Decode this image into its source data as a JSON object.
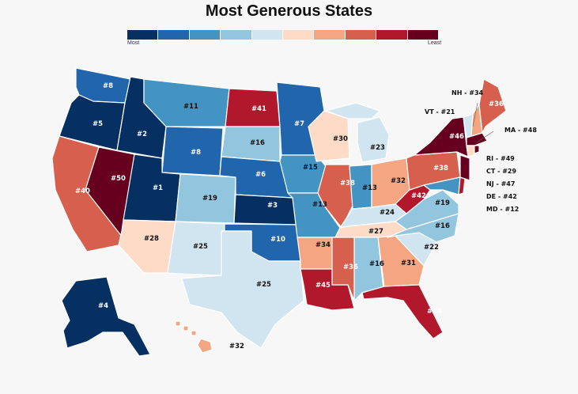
{
  "title": "Most Generous States",
  "legend": {
    "low_label": "Most",
    "high_label": "Least",
    "colors": [
      "#053061",
      "#2166ac",
      "#4393c3",
      "#92c5de",
      "#d1e5f0",
      "#fddbc7",
      "#f4a582",
      "#d6604d",
      "#b2182b",
      "#67001f"
    ]
  },
  "ranks": {
    "WA": 8,
    "OR": 5,
    "CA": 40,
    "NV": 50,
    "ID": 2,
    "MT": 11,
    "WY": 8,
    "UT": 1,
    "AZ": 28,
    "CO": 19,
    "NM": 25,
    "ND": 41,
    "SD": 16,
    "NE": 6,
    "KS": 3,
    "OK": 10,
    "TX": 25,
    "MN": 7,
    "IA": 15,
    "MO": 13,
    "AR": 34,
    "LA": 45,
    "WI": 30,
    "IL": 38,
    "MI": 23,
    "IN": 13,
    "OH": 32,
    "KY": 24,
    "TN": 27,
    "MS": 36,
    "AL": 16,
    "GA": 31,
    "FL": 44,
    "SC": 22,
    "NC": 16,
    "VA": 19,
    "WV": 42,
    "PA": 38,
    "NY": 46,
    "ME": 36,
    "VT": 21,
    "NH": 34,
    "MA": 48,
    "RI": 49,
    "CT": 29,
    "NJ": 47,
    "DE": 42,
    "MD": 12,
    "AK": 4,
    "HI": 32
  },
  "callouts": [
    {
      "id": "NH",
      "text": "NH - #34"
    },
    {
      "id": "VT",
      "text": "VT - #21"
    },
    {
      "id": "MA",
      "text": "MA - #48"
    },
    {
      "id": "RI",
      "text": "RI - #49"
    },
    {
      "id": "CT",
      "text": "CT - #29"
    },
    {
      "id": "NJ",
      "text": "NJ - #47"
    },
    {
      "id": "DE",
      "text": "DE - #42"
    },
    {
      "id": "MD",
      "text": "MD - #12"
    }
  ]
}
